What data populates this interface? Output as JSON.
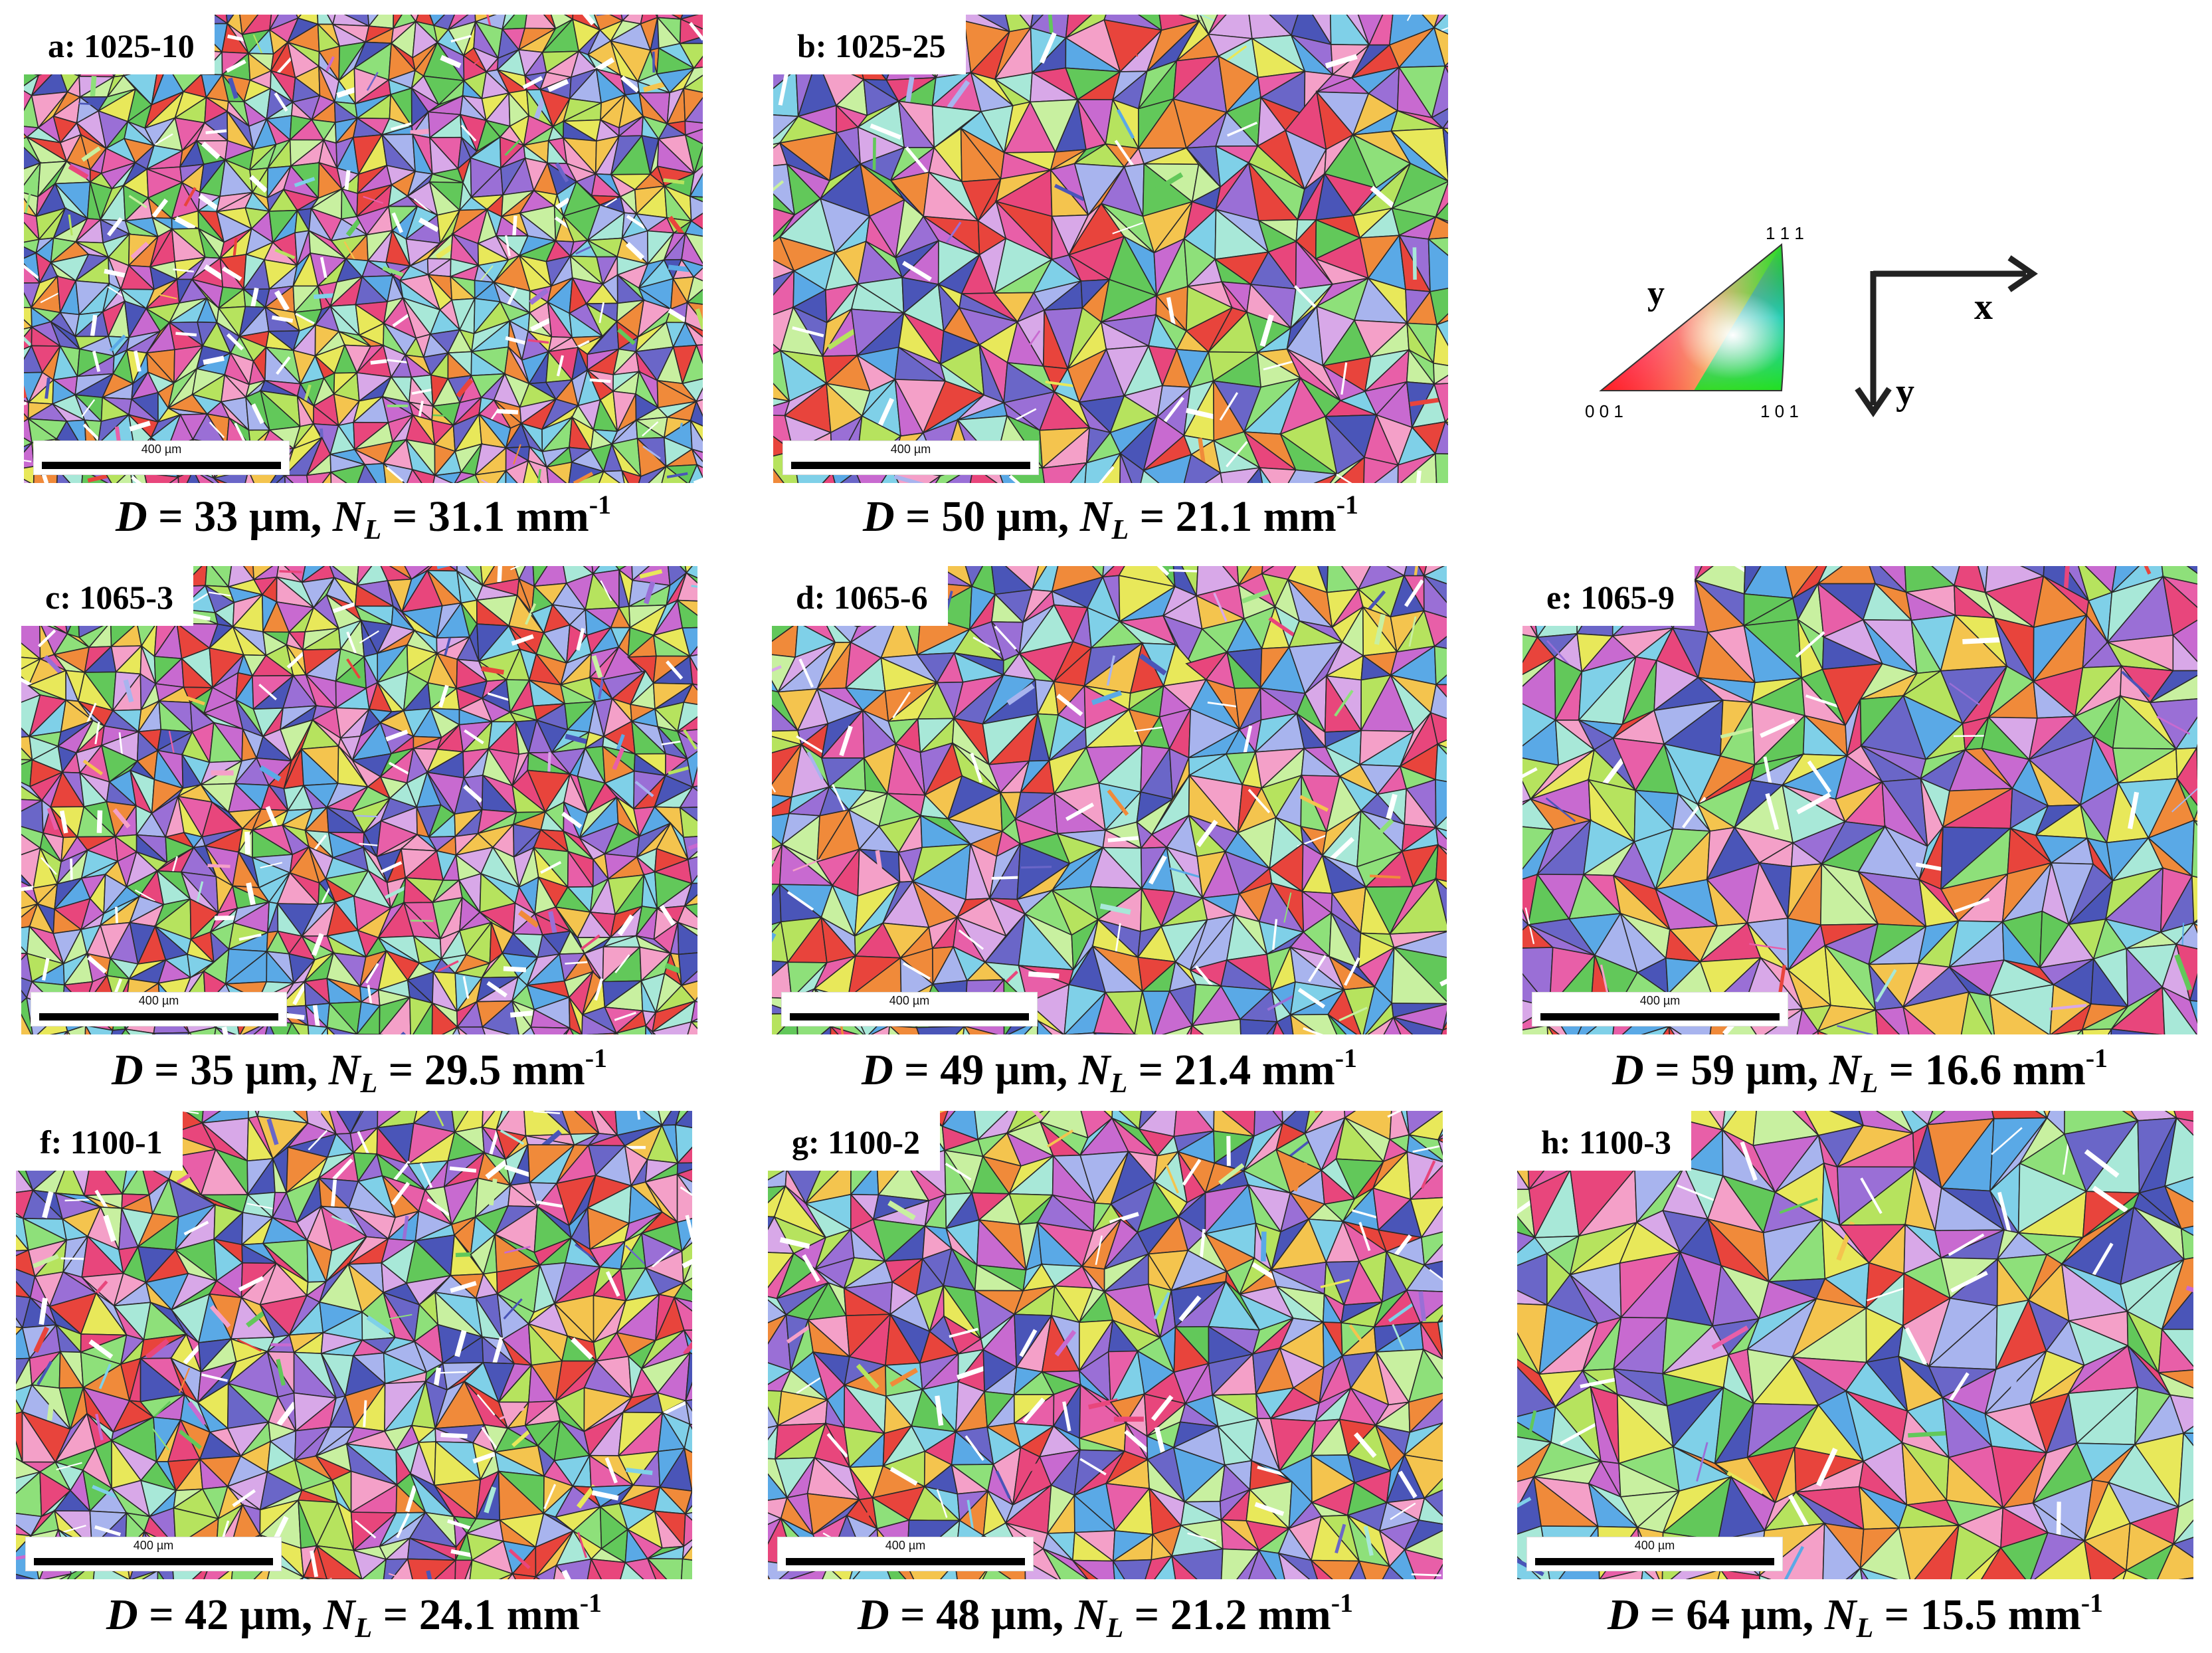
{
  "panels": [
    {
      "label": "a: 1025-10",
      "scale": "400 µm",
      "D": "33",
      "NL": "31.1",
      "unit_D": "µm",
      "unit_NL": "mm",
      "exp": "-1",
      "grain": 26,
      "seed": 11
    },
    {
      "label": "b: 1025-25",
      "scale": "400 µm",
      "D": "50",
      "NL": "21.1",
      "unit_D": "µm",
      "unit_NL": "mm",
      "exp": "-1",
      "grain": 40,
      "seed": 23
    },
    {
      "label": "c: 1065-3",
      "scale": "400 µm",
      "D": "35",
      "NL": "29.5",
      "unit_D": "µm",
      "unit_NL": "mm",
      "exp": "-1",
      "grain": 28,
      "seed": 37
    },
    {
      "label": "d: 1065-6",
      "scale": "400 µm",
      "D": "49",
      "NL": "21.4",
      "unit_D": "µm",
      "unit_NL": "mm",
      "exp": "-1",
      "grain": 38,
      "seed": 41
    },
    {
      "label": "e: 1065-9",
      "scale": "400 µm",
      "D": "59",
      "NL": "16.6",
      "unit_D": "µm",
      "unit_NL": "mm",
      "exp": "-1",
      "grain": 46,
      "seed": 53
    },
    {
      "label": "f: 1100-1",
      "scale": "400 µm",
      "D": "42",
      "NL": "24.1",
      "unit_D": "µm",
      "unit_NL": "mm",
      "exp": "-1",
      "grain": 33,
      "seed": 67
    },
    {
      "label": "g: 1100-2",
      "scale": "400 µm",
      "D": "48",
      "NL": "21.2",
      "unit_D": "µm",
      "unit_NL": "mm",
      "exp": "-1",
      "grain": 37,
      "seed": 79
    },
    {
      "label": "h: 1100-3",
      "scale": "400 µm",
      "D": "64",
      "NL": "15.5",
      "unit_D": "µm",
      "unit_NL": "mm",
      "exp": "-1",
      "grain": 50,
      "seed": 97
    }
  ],
  "caption_symbols": {
    "D": "D",
    "N": "N",
    "L": "L",
    "eq": " = "
  },
  "legend": {
    "axis_label": "y",
    "corner_001": "0 0 1",
    "corner_101": "1 0 1",
    "corner_111": "1 1 1"
  },
  "axes": {
    "x_label": "x",
    "y_label": "y"
  },
  "palette": [
    "#e8467c",
    "#e85fa8",
    "#c86ad0",
    "#9a6fd6",
    "#6a66c8",
    "#4a55b8",
    "#5aa9e6",
    "#7fd0e8",
    "#a8e8d8",
    "#8ee07a",
    "#62c85a",
    "#b6e35e",
    "#e8e85a",
    "#f4c44e",
    "#f08a3a",
    "#e8443c",
    "#f4a0c8",
    "#d8a8e8",
    "#a8b4ee",
    "#c8f0a0"
  ],
  "colors": {
    "boundary": "#2a2a2a",
    "twin": "#ffffff"
  }
}
